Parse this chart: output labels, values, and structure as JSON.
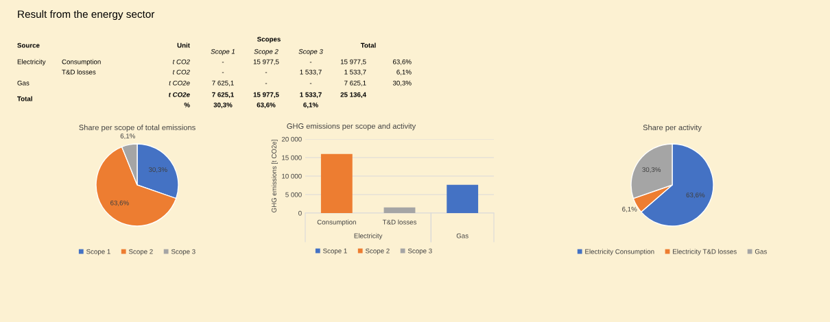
{
  "chart_data": [
    {
      "type": "other",
      "title": "Result from the energy sector",
      "annotations": [
        "Source",
        "Unit",
        "Scopes",
        "Total",
        "Scope 1",
        "Scope 2",
        "Scope 3",
        "Electricity",
        "Consumption",
        "t CO2",
        "-",
        "15 977,5",
        "-",
        "15 977,5",
        "63,6%",
        "T&D losses",
        "t CO2",
        "-",
        "-",
        "1 533,7",
        "1 533,7",
        "6,1%",
        "Gas",
        "t CO2e",
        "7 625,1",
        "-",
        "-",
        "7 625,1",
        "30,3%",
        "Total",
        "t CO2e",
        "7 625,1",
        "15 977,5",
        "1 533,7",
        "25 136,4",
        "%",
        "30,3%",
        "63,6%",
        "6,1%"
      ]
    },
    {
      "type": "pie",
      "title": "Share per scope of total emissions",
      "categories": [
        "Scope 1",
        "Scope 2",
        "Scope 3"
      ],
      "values": [
        30.3,
        63.6,
        6.1
      ],
      "colors": [
        "#4472c4",
        "#ed7d31",
        "#a5a5a5"
      ],
      "value_labels": [
        "30,3%",
        "63,6%",
        "6,1%"
      ],
      "legend": "bottom"
    },
    {
      "type": "bar",
      "title": "GHG emissions per scope and activity",
      "ylabel": "GHG emissions [t CO2e]",
      "categories": [
        "Consumption",
        "T&D losses",
        null
      ],
      "annotations": [
        "Electricity",
        "Gas"
      ],
      "series": [
        {
          "name": "Scope 1",
          "color": "#4472c4",
          "values": [
            null,
            null,
            7630
          ]
        },
        {
          "name": "Scope 2",
          "color": "#ed7d31",
          "values": [
            15980,
            null,
            null
          ]
        },
        {
          "name": "Scope 3",
          "color": "#a5a5a5",
          "values": [
            null,
            1530,
            null
          ]
        }
      ],
      "ylim": [
        0,
        20000
      ],
      "yticks": [
        0,
        {
          "value": 5000,
          "label": "5 000"
        },
        {
          "value": 10000,
          "label": "10 000"
        },
        {
          "value": 15000,
          "label": "15 000"
        },
        {
          "value": 20000,
          "label": "20 000"
        }
      ],
      "grid": "y",
      "legend": "bottom"
    },
    {
      "type": "pie",
      "title": "Share per activity",
      "categories": [
        "Electricity Consumption",
        "Electricity T&D losses",
        "Gas"
      ],
      "values": [
        63.6,
        6.1,
        30.3
      ],
      "colors": [
        "#4472c4",
        "#ed7d31",
        "#a5a5a5"
      ],
      "value_labels": [
        "63,6%",
        "6,1%",
        "30,3%"
      ],
      "legend": "bottom"
    }
  ]
}
